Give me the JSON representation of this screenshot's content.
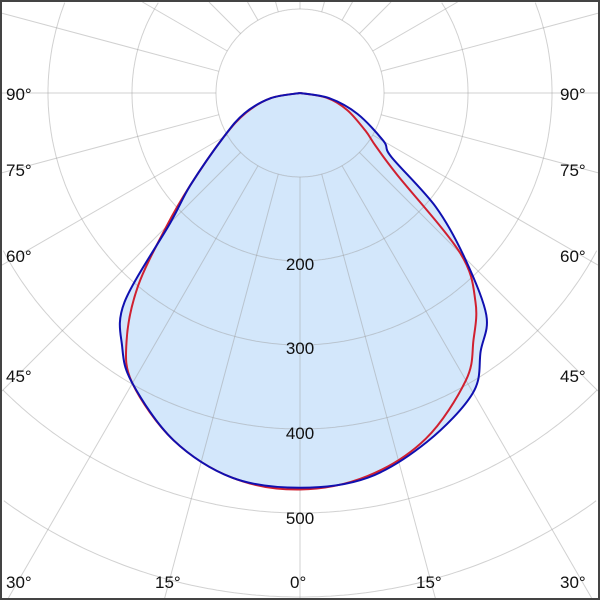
{
  "chart_data": {
    "type": "polar-line",
    "title": "",
    "radial_ticks": [
      100,
      200,
      300,
      400,
      500,
      600,
      700
    ],
    "radial_tick_labels": [
      "200",
      "300",
      "400",
      "500"
    ],
    "angle_labels_left": [
      "90°",
      "75°",
      "60°",
      "45°",
      "30°",
      "15°"
    ],
    "angle_labels_bottom": [
      "0°"
    ],
    "angle_labels_right": [
      "15°",
      "30°",
      "45°",
      "60°",
      "75°",
      "90°"
    ],
    "angle_grid_step_deg": 15,
    "grid": true,
    "angle_zero": "bottom",
    "angles_deg": [
      -90,
      -80,
      -70,
      -60,
      -50,
      -45,
      -40,
      -35,
      -30,
      -20,
      -10,
      0,
      10,
      20,
      30,
      35,
      40,
      45,
      50,
      55,
      60,
      70,
      80,
      90
    ],
    "series": [
      {
        "color": "#1010b0",
        "filled": true,
        "fill_color": "#d3e7fb",
        "values": [
          0,
          35,
          70,
          105,
          170,
          218,
          325,
          369,
          399,
          440,
          465,
          470,
          465,
          442,
          412,
          375,
          345,
          277,
          211,
          133,
          115,
          73,
          35,
          0
        ]
      },
      {
        "color": "#d02030",
        "filled": false,
        "values": [
          0,
          35,
          68,
          105,
          170,
          225,
          300,
          360,
          399,
          440,
          465,
          472,
          463,
          438,
          395,
          360,
          325,
          270,
          150,
          110,
          90,
          60,
          32,
          0
        ]
      }
    ]
  }
}
